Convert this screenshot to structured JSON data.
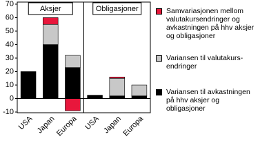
{
  "chart_data": {
    "type": "bar",
    "stacked": true,
    "panels": [
      "Aksjer",
      "Obligasjoner"
    ],
    "categories": [
      "USA",
      "Japan",
      "Europa",
      "USA",
      "Japan",
      "Europa"
    ],
    "series": [
      {
        "name": "Variansen til avkastningen på hhv aksjer og obligasjoner",
        "color": "#000000",
        "values": [
          20,
          40,
          23,
          2.5,
          2,
          2
        ]
      },
      {
        "name": "Variansen til valutakurs-\nendringer",
        "color": "#c8c8c8",
        "values": [
          0,
          15,
          9,
          0,
          13,
          8
        ]
      },
      {
        "name": "Samvariasjonen mellom valutakursendringer og avkastningen på hhv aksjer og obligasjoner",
        "color": "#e8173c",
        "values": [
          0,
          5,
          -9,
          0,
          1,
          0
        ]
      }
    ],
    "ylim": [
      -10,
      70
    ],
    "yticks": [
      -10,
      0,
      10,
      20,
      30,
      40,
      50,
      60,
      70
    ],
    "grid": false
  }
}
